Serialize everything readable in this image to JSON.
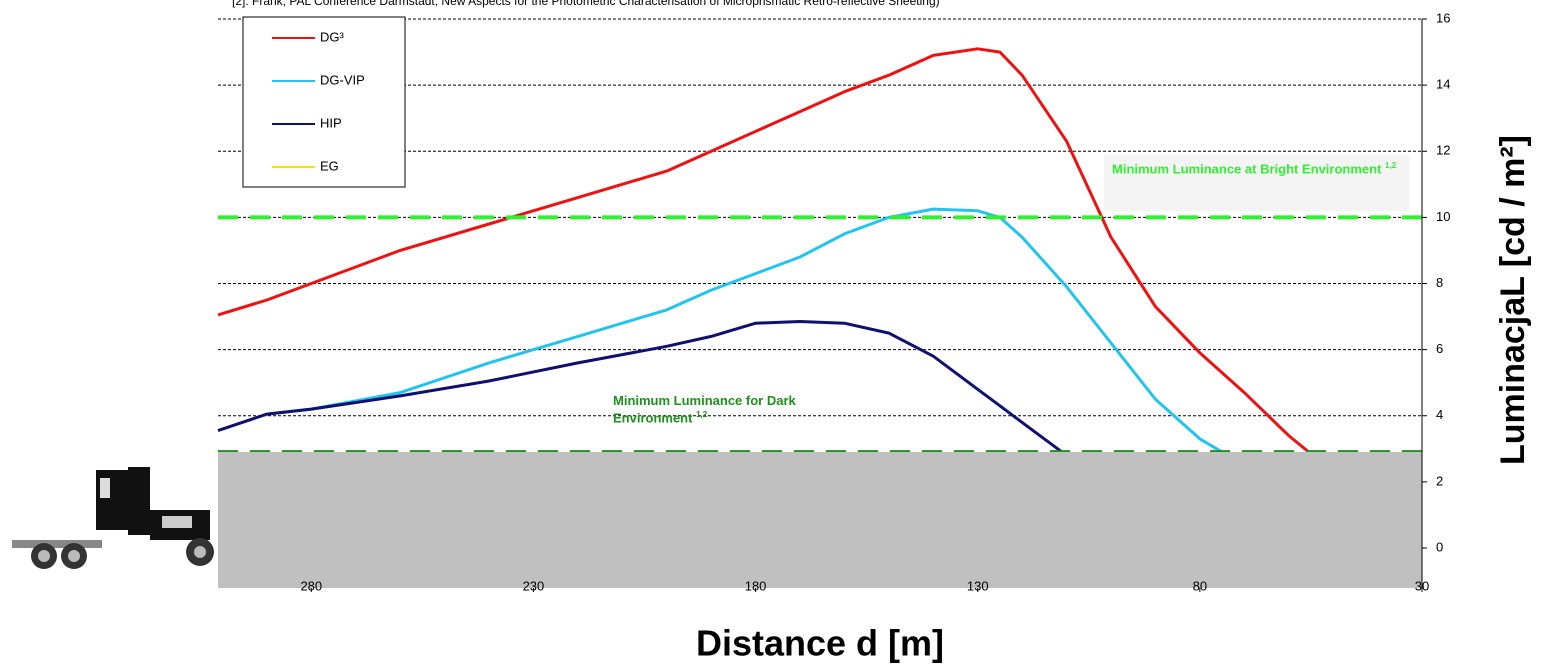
{
  "chart_data": {
    "type": "line",
    "title": "[2]: Frank, PAL Conference Darmstadt, New Aspects for the Photometric Characterisation of Microprismatic Retro-reflective Sheeting)",
    "x_label": "Distance d [m]",
    "y_label": "LuminacjaL [cd / m²]",
    "x": [
      301,
      290,
      280,
      260,
      240,
      220,
      200,
      190,
      180,
      170,
      160,
      150,
      140,
      130,
      125,
      120,
      110,
      100,
      90,
      80,
      75,
      70,
      60,
      50
    ],
    "series": [
      {
        "name": "DG³",
        "color": "#ee1111",
        "values": [
          7.05,
          7.5,
          8.0,
          9.0,
          9.8,
          10.6,
          11.4,
          12.0,
          12.6,
          13.2,
          13.8,
          14.3,
          14.9,
          15.1,
          15.0,
          14.3,
          12.3,
          9.4,
          7.3,
          5.9,
          5.3,
          4.7,
          3.4,
          2.3
        ]
      },
      {
        "name": "DG-VIP",
        "color": "#22c4ee",
        "values": [
          null,
          4.05,
          4.2,
          4.7,
          5.6,
          6.4,
          7.2,
          7.8,
          8.3,
          8.8,
          9.5,
          10.0,
          10.25,
          10.2,
          10.0,
          9.4,
          7.9,
          6.2,
          4.5,
          3.3,
          2.9,
          2.6,
          2.2,
          null
        ]
      },
      {
        "name": "HIP",
        "color": "#101070",
        "values": [
          3.55,
          4.05,
          4.2,
          4.6,
          5.05,
          5.6,
          6.1,
          6.4,
          6.8,
          6.85,
          6.8,
          6.5,
          5.8,
          4.8,
          4.3,
          3.8,
          2.8,
          2.2,
          null,
          null,
          null,
          null,
          null,
          null
        ]
      },
      {
        "name": "EG",
        "color": "#f2e600",
        "values": [
          null,
          null,
          null,
          null,
          null,
          null,
          null,
          null,
          null,
          null,
          null,
          null,
          null,
          null,
          null,
          null,
          null,
          null,
          null,
          null,
          null,
          null,
          null,
          null
        ]
      }
    ],
    "thresholds": [
      {
        "value": 10,
        "label": "Minimum Luminance at Bright Environment",
        "superscript": "1,2",
        "color": "#33ee33"
      },
      {
        "value": 2.9,
        "label": "Minimum Luminance for Dark Environment",
        "superscript": "1,2",
        "color": "#1f8f1f"
      }
    ],
    "xlim": [
      301,
      30
    ],
    "xticks": [
      280,
      230,
      180,
      130,
      80,
      30
    ],
    "ylim": [
      0,
      16
    ],
    "yticks": [
      0,
      2,
      4,
      6,
      8,
      10,
      12,
      14,
      16
    ],
    "grid": true
  }
}
